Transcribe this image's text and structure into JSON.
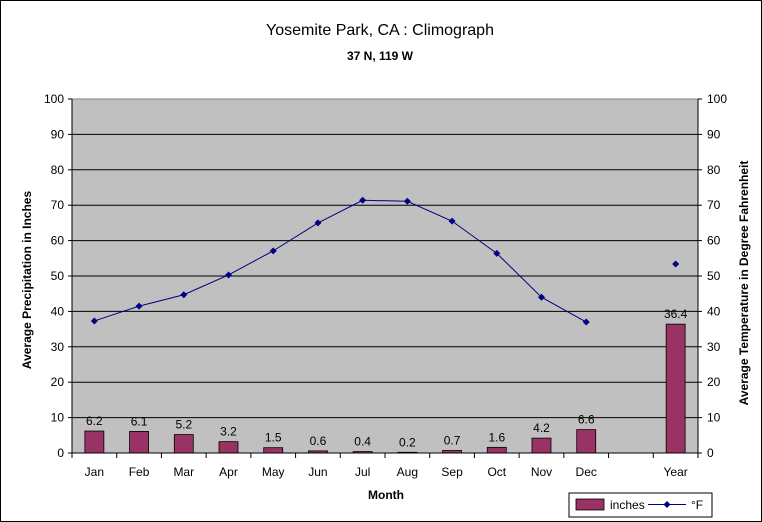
{
  "chart_data": {
    "type": "bar",
    "title": "Yosemite Park, CA : Climograph",
    "subtitle": "37 N, 119 W",
    "xlabel": "Month",
    "ylabel_left": "Average Precipitation in Inches",
    "ylabel_right": "Average Temperature in Degree Fahrenheit",
    "ylim": [
      0,
      100
    ],
    "yticks": [
      "0",
      "10",
      "20",
      "30",
      "40",
      "50",
      "60",
      "70",
      "80",
      "90",
      "100"
    ],
    "categories": [
      "Jan",
      "Feb",
      "Mar",
      "Apr",
      "May",
      "Jun",
      "Jul",
      "Aug",
      "Sep",
      "Oct",
      "Nov",
      "Dec",
      "",
      "Year"
    ],
    "grid": true,
    "legend_position": "bottom-right",
    "series": [
      {
        "name": "inches",
        "type": "bar",
        "color": "#993366",
        "values": [
          6.2,
          6.1,
          5.2,
          3.2,
          1.5,
          0.6,
          0.4,
          0.2,
          0.7,
          1.6,
          4.2,
          6.6,
          null,
          36.4
        ],
        "labels": [
          "6.2",
          "6.1",
          "5.2",
          "3.2",
          "1.5",
          "0.6",
          "0.4",
          "0.2",
          "0.7",
          "1.6",
          "4.2",
          "6.6",
          "",
          "36.4"
        ]
      },
      {
        "name": "°F",
        "type": "line",
        "color": "#000080",
        "values": [
          37.3,
          41.5,
          44.7,
          50.3,
          57.1,
          65.0,
          71.4,
          71.1,
          65.5,
          56.4,
          44.0,
          37.0,
          null,
          53.4
        ]
      }
    ],
    "colors": {
      "plot_bg": "#c0c0c0",
      "grid": "#000000"
    }
  }
}
